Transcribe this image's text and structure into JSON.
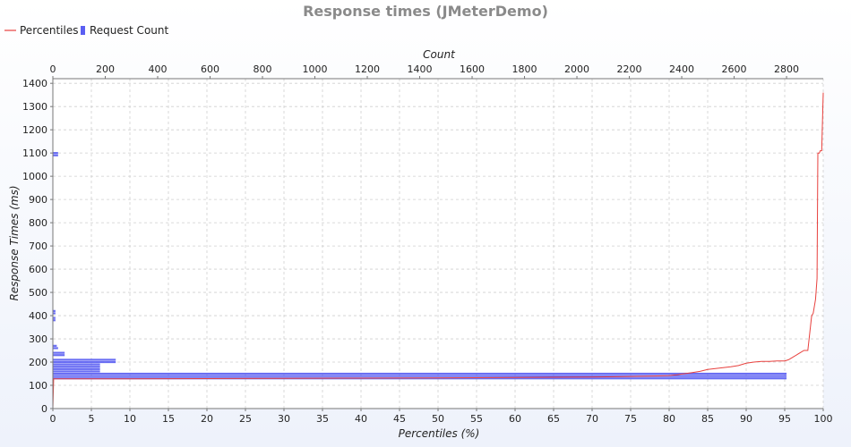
{
  "chart_data": {
    "type": "bar+line",
    "title": "Response times (JMeterDemo)",
    "legend": [
      {
        "label": "Percentiles",
        "color": "#e8413e",
        "kind": "line"
      },
      {
        "label": "Request Count",
        "color": "#5a5ef2",
        "kind": "bar"
      }
    ],
    "legend_position": "top-left",
    "top_axis": {
      "label": "Count",
      "range": [
        0,
        2940
      ],
      "ticks": [
        0,
        200,
        400,
        600,
        800,
        1000,
        1200,
        1400,
        1600,
        1800,
        2000,
        2200,
        2400,
        2600,
        2800
      ]
    },
    "bottom_axis": {
      "label": "Percentiles (%)",
      "range": [
        0,
        100
      ],
      "ticks": [
        0,
        5,
        10,
        15,
        20,
        25,
        30,
        35,
        40,
        45,
        50,
        55,
        60,
        65,
        70,
        75,
        80,
        85,
        90,
        95,
        100
      ]
    },
    "y_axis": {
      "label": "Response Times (ms)",
      "range": [
        0,
        1420
      ],
      "ticks": [
        0,
        100,
        200,
        300,
        400,
        500,
        600,
        700,
        800,
        900,
        1000,
        1100,
        1200,
        1300,
        1400
      ]
    },
    "grid": true,
    "series": [
      {
        "name": "Request Count",
        "type": "horizontal-bar",
        "bins_ms": [
          1090,
          1100,
          420,
          410,
          390,
          380,
          270,
          260,
          240,
          230,
          210,
          200,
          190,
          180,
          170,
          160,
          150,
          140,
          130
        ],
        "counts": [
          20,
          20,
          10,
          10,
          10,
          10,
          15,
          20,
          45,
          45,
          240,
          240,
          180,
          180,
          180,
          180,
          2800,
          2800,
          2800
        ]
      },
      {
        "name": "Percentiles",
        "type": "line",
        "x": [
          0,
          0.1,
          1,
          5,
          10,
          20,
          30,
          40,
          50,
          60,
          70,
          75,
          78,
          80,
          81,
          82,
          83,
          84,
          85,
          86,
          87,
          88,
          89,
          90,
          91,
          92,
          93,
          94,
          95,
          95.5,
          96,
          97,
          97.5,
          98,
          98.5,
          98.7,
          99,
          99.2,
          99.3,
          99.4,
          99.5,
          99.6,
          99.8,
          100
        ],
        "y": [
          0,
          128,
          128,
          128,
          128,
          129,
          130,
          131,
          132,
          134,
          136,
          138,
          140,
          142,
          145,
          150,
          155,
          160,
          168,
          172,
          176,
          180,
          185,
          195,
          200,
          203,
          203,
          205,
          205,
          210,
          220,
          240,
          250,
          250,
          400,
          410,
          470,
          560,
          1100,
          1100,
          1100,
          1110,
          1110,
          1360
        ]
      }
    ]
  }
}
